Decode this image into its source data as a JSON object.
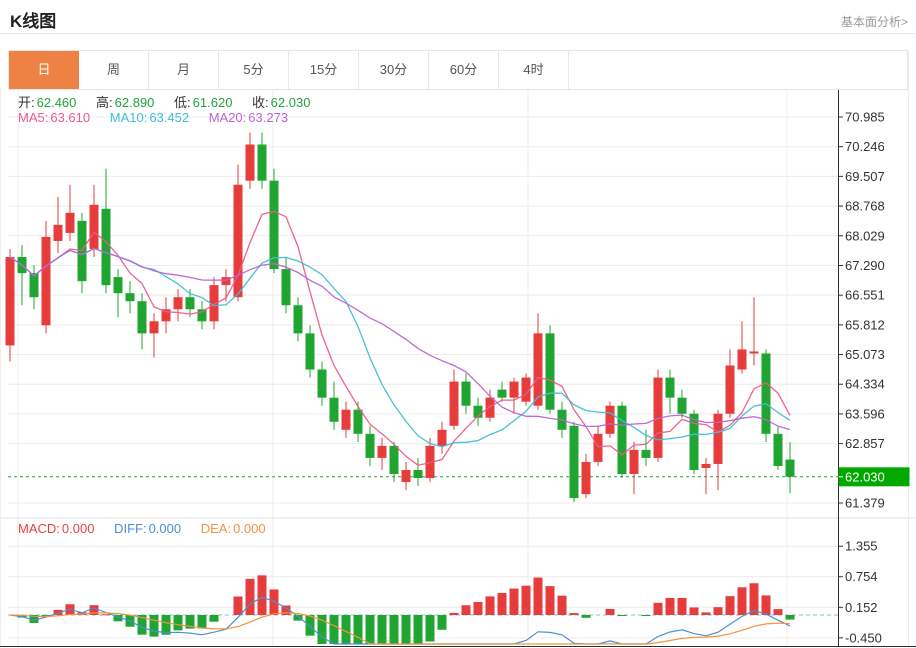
{
  "header": {
    "title": "K线图",
    "link": "基本面分析>"
  },
  "tabs": {
    "items": [
      {
        "label": "日",
        "active": true
      },
      {
        "label": "周",
        "active": false
      },
      {
        "label": "月",
        "active": false
      },
      {
        "label": "5分",
        "active": false
      },
      {
        "label": "15分",
        "active": false
      },
      {
        "label": "30分",
        "active": false
      },
      {
        "label": "60分",
        "active": false
      },
      {
        "label": "4时",
        "active": false
      }
    ]
  },
  "readout": {
    "ohlc": [
      {
        "label": "开:",
        "value": "62.460"
      },
      {
        "label": "高:",
        "value": "62.890"
      },
      {
        "label": "低:",
        "value": "61.620"
      },
      {
        "label": "收:",
        "value": "62.030"
      }
    ],
    "ma": [
      {
        "label": "MA5:",
        "value": "63.610"
      },
      {
        "label": "MA10:",
        "value": "63.452"
      },
      {
        "label": "MA20:",
        "value": "63.273"
      }
    ],
    "macd": [
      {
        "label": "MACD:",
        "value": "0.000"
      },
      {
        "label": "DIFF:",
        "value": "0.000"
      },
      {
        "label": "DEA:",
        "value": "0.000"
      }
    ]
  },
  "chart_data": {
    "type": "candlestick+macd",
    "title": "K线图 daily candlestick chart with MA5/MA10/MA20 overlays and MACD pane",
    "price_axis_ticks": [
      "70.985",
      "70.246",
      "69.507",
      "68.768",
      "68.029",
      "67.290",
      "66.551",
      "65.812",
      "65.073",
      "64.334",
      "63.596",
      "62.857",
      "61.379"
    ],
    "current_price_label": "62.030",
    "current_price": 62.03,
    "macd_axis_ticks": [
      "1.355",
      "0.754",
      "0.152",
      "-0.450"
    ],
    "macd_values": {
      "macd": 0.0,
      "diff": 0.0,
      "dea": 0.0
    },
    "ma_periods": [
      5,
      10,
      20
    ],
    "legend_note": "red = up candle, green = down candle (CN convention)",
    "candles": [
      [
        65.3,
        67.7,
        64.9,
        67.5
      ],
      [
        67.5,
        67.8,
        66.3,
        67.1
      ],
      [
        67.1,
        67.3,
        66.2,
        66.5
      ],
      [
        65.8,
        68.4,
        65.6,
        68.0
      ],
      [
        67.9,
        69.0,
        67.6,
        68.3
      ],
      [
        68.1,
        69.3,
        67.9,
        68.6
      ],
      [
        68.4,
        68.6,
        66.6,
        66.9
      ],
      [
        67.7,
        69.3,
        67.5,
        68.8
      ],
      [
        68.7,
        69.7,
        66.6,
        66.8
      ],
      [
        67.0,
        67.2,
        66.0,
        66.6
      ],
      [
        66.6,
        66.9,
        66.1,
        66.4
      ],
      [
        66.4,
        66.6,
        65.2,
        65.6
      ],
      [
        65.6,
        66.1,
        65.0,
        65.9
      ],
      [
        65.9,
        66.5,
        65.6,
        66.2
      ],
      [
        66.2,
        66.7,
        65.9,
        66.5
      ],
      [
        66.5,
        66.7,
        66.0,
        66.2
      ],
      [
        66.2,
        66.4,
        65.7,
        65.9
      ],
      [
        65.9,
        67.0,
        65.7,
        66.8
      ],
      [
        66.8,
        67.2,
        66.4,
        67.0
      ],
      [
        66.5,
        69.8,
        66.4,
        69.3
      ],
      [
        69.4,
        70.6,
        69.2,
        70.3
      ],
      [
        70.3,
        70.6,
        69.2,
        69.4
      ],
      [
        69.4,
        69.7,
        67.1,
        67.2
      ],
      [
        67.2,
        67.5,
        66.1,
        66.3
      ],
      [
        66.3,
        66.5,
        65.4,
        65.6
      ],
      [
        65.6,
        65.8,
        64.5,
        64.7
      ],
      [
        64.7,
        64.9,
        63.8,
        64.0
      ],
      [
        64.0,
        64.4,
        63.2,
        63.4
      ],
      [
        63.2,
        63.9,
        63.0,
        63.7
      ],
      [
        63.7,
        63.9,
        62.9,
        63.1
      ],
      [
        63.1,
        63.3,
        62.3,
        62.5
      ],
      [
        62.5,
        63.0,
        62.2,
        62.8
      ],
      [
        62.8,
        62.9,
        61.9,
        62.1
      ],
      [
        61.9,
        62.4,
        61.7,
        62.2
      ],
      [
        62.2,
        62.5,
        61.8,
        62.0
      ],
      [
        62.0,
        63.0,
        61.9,
        62.8
      ],
      [
        62.8,
        63.4,
        62.6,
        63.2
      ],
      [
        63.3,
        64.7,
        63.2,
        64.4
      ],
      [
        64.4,
        64.6,
        63.6,
        63.8
      ],
      [
        63.8,
        64.0,
        63.3,
        63.5
      ],
      [
        63.5,
        64.2,
        63.4,
        64.0
      ],
      [
        64.2,
        64.4,
        63.9,
        64.0
      ],
      [
        64.0,
        64.5,
        63.6,
        64.4
      ],
      [
        63.9,
        64.6,
        63.8,
        64.5
      ],
      [
        63.8,
        66.1,
        63.7,
        65.6
      ],
      [
        65.6,
        65.8,
        63.6,
        63.7
      ],
      [
        63.7,
        63.9,
        63.0,
        63.2
      ],
      [
        63.3,
        63.4,
        61.4,
        61.5
      ],
      [
        61.6,
        62.6,
        61.5,
        62.4
      ],
      [
        62.4,
        63.3,
        62.3,
        63.1
      ],
      [
        63.1,
        63.9,
        63.0,
        63.8
      ],
      [
        63.8,
        63.9,
        62.0,
        62.1
      ],
      [
        62.1,
        62.9,
        61.6,
        62.7
      ],
      [
        62.7,
        63.2,
        62.3,
        62.5
      ],
      [
        62.5,
        64.7,
        62.4,
        64.5
      ],
      [
        64.5,
        64.7,
        63.6,
        64.0
      ],
      [
        64.0,
        64.2,
        63.5,
        63.6
      ],
      [
        63.6,
        63.7,
        62.1,
        62.2
      ],
      [
        62.25,
        62.5,
        61.6,
        62.35
      ],
      [
        62.35,
        63.7,
        61.7,
        63.6
      ],
      [
        63.6,
        65.2,
        63.5,
        64.8
      ],
      [
        64.7,
        65.9,
        64.6,
        65.2
      ],
      [
        65.1,
        66.5,
        64.8,
        65.15
      ],
      [
        65.1,
        65.2,
        62.9,
        63.1
      ],
      [
        63.1,
        63.3,
        62.2,
        62.3
      ],
      [
        62.46,
        62.89,
        61.62,
        62.03
      ]
    ],
    "colors": {
      "up": "#e73c3c",
      "down": "#21a532",
      "price_text": "#21a33c",
      "ma5": "#ee5a8b",
      "ma10": "#3fbed6",
      "ma20": "#b964d2",
      "diff": "#4a90d6",
      "dea": "#f0953f",
      "macd_label": "#e84040",
      "accent": "#ee8144",
      "badge": "#00a800",
      "axis": "#2f2f2f",
      "grid": "#ececec",
      "dashed_zero": "#7cc5cf",
      "label": "#333333",
      "link": "#999999"
    }
  }
}
